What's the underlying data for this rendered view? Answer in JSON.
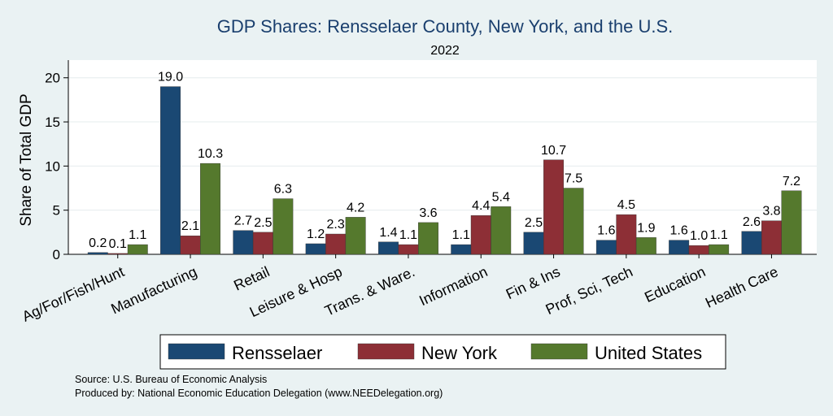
{
  "chart_data": {
    "type": "bar",
    "title": "GDP Shares: Rensselaer County, New York, and the U.S.",
    "subtitle": "2022",
    "xlabel": "",
    "ylabel": "Share of Total GDP",
    "ylim": [
      0,
      22
    ],
    "yticks": [
      0,
      5,
      10,
      15,
      20
    ],
    "grid": true,
    "legend_position": "bottom",
    "categories": [
      "Ag/For/Fish/Hunt",
      "Manufacturing",
      "Retail",
      "Leisure & Hosp",
      "Trans. & Ware.",
      "Information",
      "Fin & Ins",
      "Prof, Sci, Tech",
      "Education",
      "Health Care"
    ],
    "series": [
      {
        "name": "Rensselaer",
        "color": "#1a4873",
        "values": [
          0.2,
          19.0,
          2.7,
          1.2,
          1.4,
          1.1,
          2.5,
          1.6,
          1.6,
          2.6
        ]
      },
      {
        "name": "New York",
        "color": "#8d2f36",
        "values": [
          0.1,
          2.1,
          2.5,
          2.3,
          1.1,
          4.4,
          10.7,
          4.5,
          1.0,
          3.8
        ]
      },
      {
        "name": "United States",
        "color": "#55792d",
        "values": [
          1.1,
          10.3,
          6.3,
          4.2,
          3.6,
          5.4,
          7.5,
          1.9,
          1.1,
          7.2
        ]
      }
    ],
    "notes": [
      "Source: U.S. Bureau of Economic Analysis",
      "Produced by: National Economic Education Delegation (www.NEEDelegation.org)"
    ]
  }
}
